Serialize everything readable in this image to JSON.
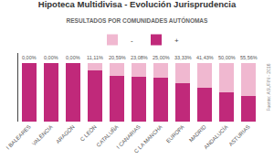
{
  "chart_data": {
    "type": "bar",
    "title": "Hipoteca Multidivisa - Evolución Jurisprudencia",
    "subtitle": "RESULTADOS POR COMUNIDADES AUTÓNOMAS",
    "categories": [
      "I BALEARES",
      "VALÈNCIA",
      "ARAGÓN",
      "C LEÓN",
      "CATALUÑA",
      "I CANARIAS",
      "C LA MANCHA",
      "EUROPA",
      "MADRID",
      "ANDALUCÍA",
      "ASTURIAS"
    ],
    "series": [
      {
        "name": "+",
        "color": "#c0297a",
        "values": [
          100.0,
          100.0,
          100.0,
          88.89,
          79.41,
          76.92,
          75.0,
          66.67,
          58.57,
          50.0,
          44.44
        ]
      },
      {
        "name": "-",
        "color": "#f0b8d0",
        "values": [
          0.0,
          0.0,
          0.0,
          11.11,
          20.59,
          23.08,
          25.0,
          33.33,
          41.43,
          50.0,
          55.56
        ],
        "value_labels": [
          "0,00%",
          "0,00%",
          "0,00%",
          "11,11%",
          "20,59%",
          "23,08%",
          "25,00%",
          "33,33%",
          "41,43%",
          "50,00%",
          "55,56%"
        ]
      }
    ],
    "stacked": true,
    "data_labels": true,
    "ylim": [
      0,
      118
    ],
    "tick_labels": "x",
    "grid": false,
    "legend": "top",
    "annotations": [
      "Fuente: ASUFIN - 2016"
    ]
  }
}
